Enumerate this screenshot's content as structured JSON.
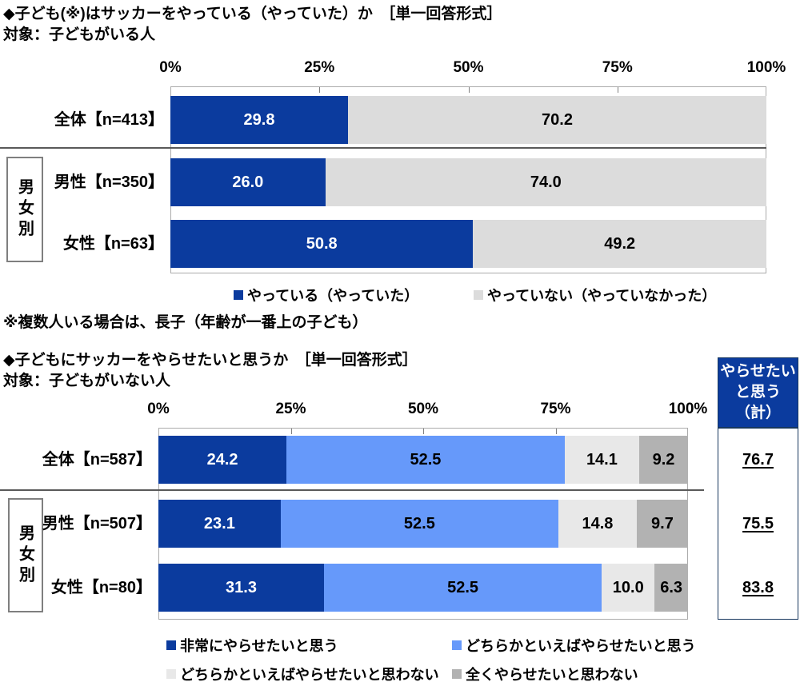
{
  "colors": {
    "dark_blue": "#0B3B9E",
    "light_blue": "#6699FA",
    "gray_answer": "#DCDCDC",
    "gray_light": "#E8E8E8",
    "gray_medium": "#B2B2B2",
    "divider": "#595959",
    "plot_border": "#ABABAB",
    "summary_border": "#17375E"
  },
  "chart_data": [
    {
      "type": "bar",
      "stacked": true,
      "orientation": "horizontal",
      "title": "◆子ども(※)はサッカーをやっている（やっていた）か　［単一回答形式］",
      "subtitle": "対象：子どもがいる人",
      "group_label": "男女別",
      "note": "※複数人いる場合は、長子（年齢が一番上の子ども）",
      "categories": [
        "全体【n=413】",
        "男性【n=350】",
        "女性【n=63】"
      ],
      "series": [
        {
          "name": "やっている（やっていた）",
          "color": "#0B3B9E",
          "label_color": "#FFFFFF",
          "values": [
            29.8,
            26.0,
            50.8
          ]
        },
        {
          "name": "やっていない（やっていなかった）",
          "color": "#DCDCDC",
          "label_color": "#000000",
          "values": [
            70.2,
            74.0,
            49.2
          ]
        }
      ],
      "xlim": [
        0,
        100
      ],
      "x_ticks": [
        "0%",
        "25%",
        "50%",
        "75%",
        "100%"
      ],
      "legend_position": "bottom",
      "grid": false
    },
    {
      "type": "bar",
      "stacked": true,
      "orientation": "horizontal",
      "title": "◆子どもにサッカーをやらせたいと思うか　［単一回答形式］",
      "subtitle": "対象：子どもがいない人",
      "group_label": "男女別",
      "categories": [
        "全体【n=587】",
        "男性【n=507】",
        "女性【n=80】"
      ],
      "series": [
        {
          "name": "非常にやらせたいと思う",
          "color": "#0B3B9E",
          "label_color": "#FFFFFF",
          "values": [
            24.2,
            23.1,
            31.3
          ]
        },
        {
          "name": "どちらかといえばやらせたいと思う",
          "color": "#6699FA",
          "label_color": "#000000",
          "values": [
            52.5,
            52.5,
            52.5
          ]
        },
        {
          "name": "どちらかといえばやらせたいと思わない",
          "color": "#E8E8E8",
          "label_color": "#000000",
          "values": [
            14.1,
            14.8,
            10.0
          ]
        },
        {
          "name": "全くやらせたいと思わない",
          "color": "#B2B2B2",
          "label_color": "#000000",
          "values": [
            9.2,
            9.7,
            6.3
          ]
        }
      ],
      "xlim": [
        0,
        100
      ],
      "x_ticks": [
        "0%",
        "25%",
        "50%",
        "75%",
        "100%"
      ],
      "legend_position": "bottom",
      "grid": false,
      "summary": {
        "header": "やらせたいと思う（計）",
        "header_lines": [
          "やらせたい",
          "と思う",
          "（計）"
        ],
        "values": [
          76.7,
          75.5,
          83.8
        ]
      }
    }
  ]
}
